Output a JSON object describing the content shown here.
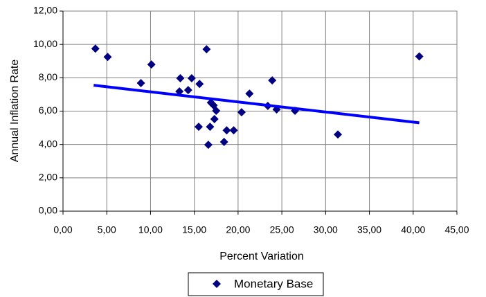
{
  "chart_data": {
    "type": "scatter",
    "x_label": "Percent Variation",
    "y_label": "Annual Inflation Rate",
    "series": [
      {
        "name": "Monetary Base",
        "color": "#000080",
        "x": [
          3.7,
          5.1,
          10.1,
          8.9,
          13.4,
          13.3,
          14.3,
          14.7,
          15.6,
          16.4,
          15.5,
          16.9,
          17.2,
          17.5,
          17.3,
          16.8,
          16.6,
          18.4,
          18.7,
          19.5,
          20.4,
          21.3,
          23.9,
          23.4,
          24.4,
          26.5,
          31.4,
          40.7
        ],
        "values": [
          9.75,
          9.25,
          8.8,
          7.68,
          7.97,
          7.18,
          7.26,
          7.97,
          7.63,
          9.71,
          5.06,
          6.51,
          6.35,
          6.02,
          5.52,
          5.06,
          3.98,
          4.15,
          4.85,
          4.85,
          5.93,
          7.05,
          7.84,
          6.31,
          6.1,
          6.02,
          4.6,
          9.28
        ]
      }
    ],
    "trendline": {
      "color": "#0000ff",
      "x": [
        3.5,
        40.7
      ],
      "values": [
        7.55,
        5.3
      ]
    },
    "xlim": [
      0,
      45
    ],
    "ylim": [
      0,
      12
    ],
    "xticks": [
      {
        "value": 0,
        "label": "0,00"
      },
      {
        "value": 5,
        "label": "5,00"
      },
      {
        "value": 10,
        "label": "10,00"
      },
      {
        "value": 15,
        "label": "15,00"
      },
      {
        "value": 20,
        "label": "20,00"
      },
      {
        "value": 25,
        "label": "25,00"
      },
      {
        "value": 30,
        "label": "30,00"
      },
      {
        "value": 35,
        "label": "35,00"
      },
      {
        "value": 40,
        "label": "40,00"
      },
      {
        "value": 45,
        "label": "45,00"
      }
    ],
    "yticks": [
      {
        "value": 0,
        "label": "0,00"
      },
      {
        "value": 2,
        "label": "2,00"
      },
      {
        "value": 4,
        "label": "4,00"
      },
      {
        "value": 6,
        "label": "6,00"
      },
      {
        "value": 8,
        "label": "8,00"
      },
      {
        "value": 10,
        "label": "10,00"
      },
      {
        "value": 12,
        "label": "12,00"
      }
    ],
    "grid": true,
    "legend": "bottom"
  }
}
